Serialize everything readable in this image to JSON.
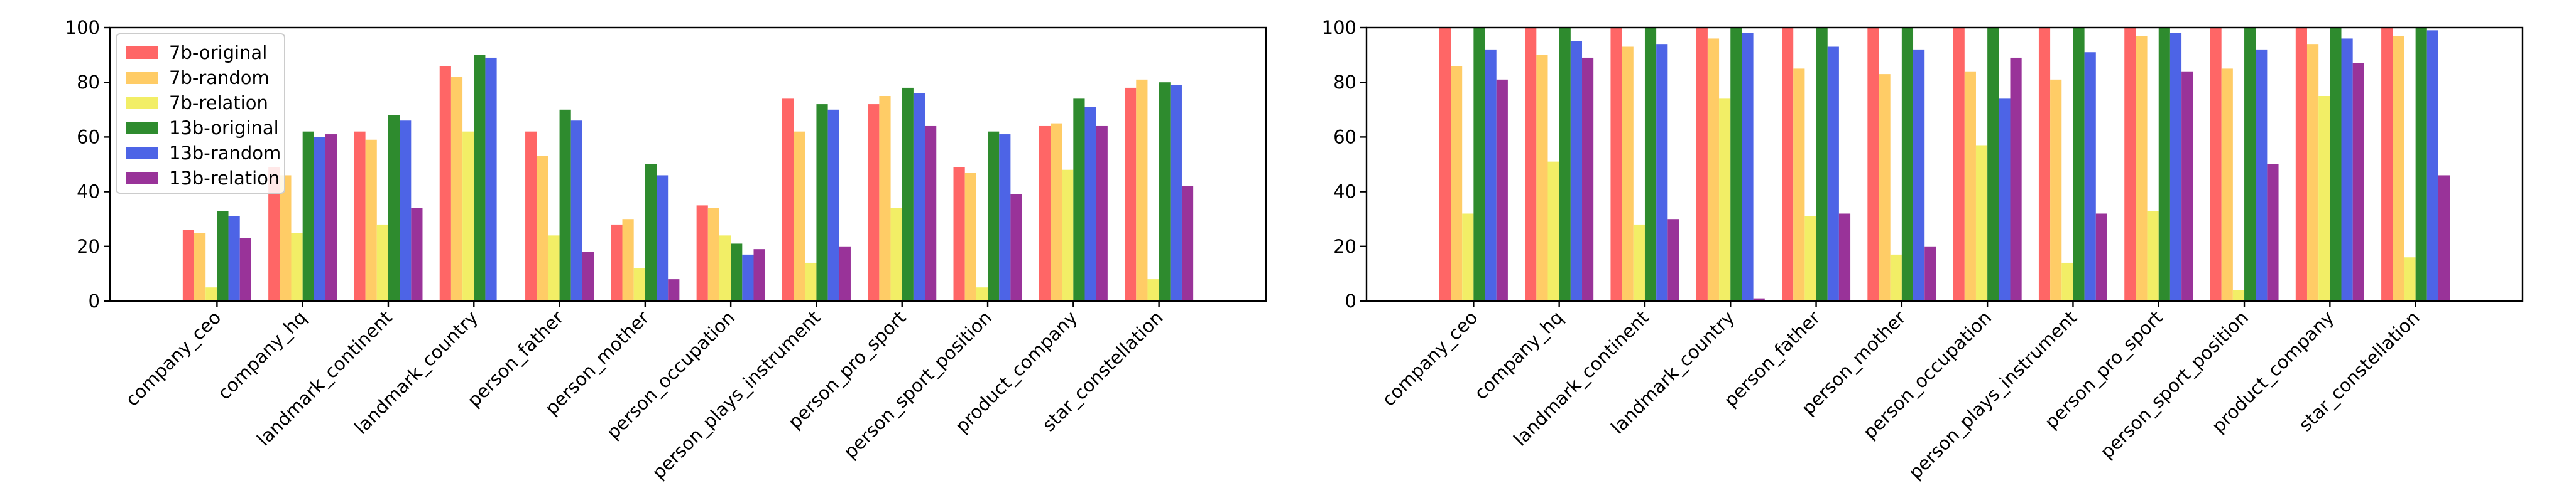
{
  "chart_data": [
    {
      "type": "bar",
      "categories": [
        "company_ceo",
        "company_hq",
        "landmark_continent",
        "landmark_country",
        "person_father",
        "person_mother",
        "person_occupation",
        "person_plays_instrument",
        "person_pro_sport",
        "person_sport_position",
        "product_company",
        "star_constellation"
      ],
      "series": [
        {
          "name": "7b-original",
          "color": "#ff6666",
          "values": [
            26,
            49,
            62,
            86,
            62,
            28,
            35,
            74,
            72,
            49,
            64,
            78
          ]
        },
        {
          "name": "7b-random",
          "color": "#ffcc66",
          "values": [
            25,
            46,
            59,
            82,
            53,
            30,
            34,
            62,
            75,
            47,
            65,
            81
          ]
        },
        {
          "name": "7b-relation",
          "color": "#f2ee66",
          "values": [
            5,
            25,
            28,
            62,
            24,
            12,
            24,
            14,
            34,
            5,
            48,
            8
          ]
        },
        {
          "name": "13b-original",
          "color": "#2e8b2e",
          "values": [
            33,
            62,
            68,
            90,
            70,
            50,
            21,
            72,
            78,
            62,
            74,
            80
          ]
        },
        {
          "name": "13b-random",
          "color": "#4d64e6",
          "values": [
            31,
            60,
            66,
            89,
            66,
            46,
            17,
            70,
            76,
            61,
            71,
            79
          ]
        },
        {
          "name": "13b-relation",
          "color": "#993399",
          "values": [
            23,
            61,
            34,
            0,
            18,
            8,
            19,
            20,
            64,
            39,
            64,
            42
          ]
        }
      ],
      "ylim": [
        0,
        100
      ],
      "yticks": [
        "0",
        "20",
        "40",
        "60",
        "80",
        "100"
      ],
      "grid": false,
      "legend": "top-left"
    },
    {
      "type": "bar",
      "categories": [
        "company_ceo",
        "company_hq",
        "landmark_continent",
        "landmark_country",
        "person_father",
        "person_mother",
        "person_occupation",
        "person_plays_instrument",
        "person_pro_sport",
        "person_sport_position",
        "product_company",
        "star_constellation"
      ],
      "series": [
        {
          "name": "7b-original",
          "color": "#ff6666",
          "values": [
            100,
            100,
            100,
            100,
            100,
            100,
            100,
            100,
            100,
            100,
            100,
            100
          ]
        },
        {
          "name": "7b-random",
          "color": "#ffcc66",
          "values": [
            86,
            90,
            93,
            96,
            85,
            83,
            84,
            81,
            97,
            85,
            94,
            97
          ]
        },
        {
          "name": "7b-relation",
          "color": "#f2ee66",
          "values": [
            32,
            51,
            28,
            74,
            31,
            17,
            57,
            14,
            33,
            4,
            75,
            16
          ]
        },
        {
          "name": "13b-original",
          "color": "#2e8b2e",
          "values": [
            100,
            100,
            100,
            100,
            100,
            100,
            100,
            100,
            100,
            100,
            100,
            100
          ]
        },
        {
          "name": "13b-random",
          "color": "#4d64e6",
          "values": [
            92,
            95,
            94,
            98,
            93,
            92,
            74,
            91,
            98,
            92,
            96,
            99
          ]
        },
        {
          "name": "13b-relation",
          "color": "#993399",
          "values": [
            81,
            89,
            30,
            1,
            32,
            20,
            89,
            32,
            84,
            50,
            87,
            46
          ]
        }
      ],
      "ylim": [
        0,
        100
      ],
      "yticks": [
        "0",
        "20",
        "40",
        "60",
        "80",
        "100"
      ],
      "grid": false,
      "legend": "none"
    }
  ]
}
